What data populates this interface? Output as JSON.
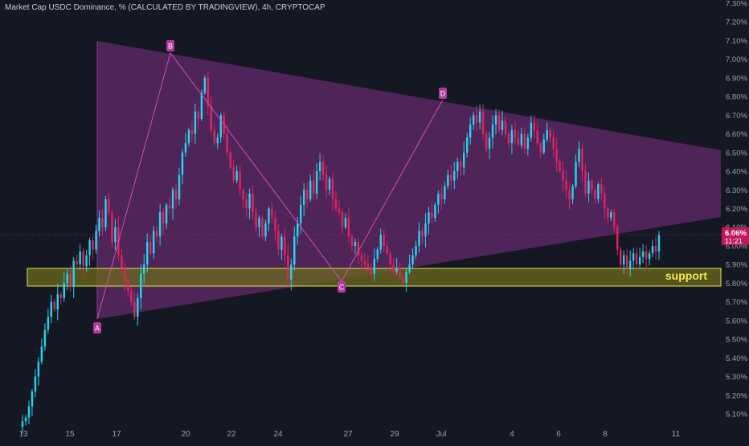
{
  "header": {
    "title": "Market Cap USDC Dominance, % (CALCULATED BY TRADINGVIEW), 4h, CRYPTOCAP"
  },
  "price_label": {
    "value": "6.06%",
    "countdown": "11:21"
  },
  "colors": {
    "background": "#141823",
    "bull": "#22d3ee",
    "bear": "#e0245e",
    "triangle_fill": "#7e2f86",
    "pattern_line": "#d44fb8",
    "point_label": "#b23aa0",
    "support_fill": "#6b6a1c",
    "support_border": "#e8e24a",
    "support_text": "#f1ea4a",
    "price_line": "#c2185b",
    "axis_text": "#9aa0ab",
    "price_tag": "#c2185b"
  },
  "chart_data": {
    "type": "candlestick",
    "title": "Market Cap USDC Dominance, % (CALCULATED BY TRADINGVIEW), 4h, CRYPTOCAP",
    "xlabel": "",
    "ylabel": "",
    "ylim": [
      5.05,
      7.31
    ],
    "grid": false,
    "y_ticks": [
      "5.10%",
      "5.20%",
      "5.30%",
      "5.40%",
      "5.50%",
      "5.60%",
      "5.70%",
      "5.80%",
      "5.90%",
      "6.00%",
      "6.10%",
      "6.20%",
      "6.30%",
      "6.40%",
      "6.50%",
      "6.60%",
      "6.70%",
      "6.80%",
      "6.90%",
      "7.00%",
      "7.10%",
      "7.20%",
      "7.30%"
    ],
    "x_ticks": [
      "13",
      "15",
      "17",
      "20",
      "22",
      "24",
      "27",
      "29",
      "Jul",
      "4",
      "6",
      "8",
      "11"
    ],
    "candles_close": [
      5.06,
      5.08,
      5.14,
      5.22,
      5.3,
      5.38,
      5.46,
      5.55,
      5.62,
      5.7,
      5.66,
      5.74,
      5.72,
      5.8,
      5.85,
      5.78,
      5.92,
      5.9,
      5.97,
      5.89,
      5.95,
      6.03,
      5.98,
      6.08,
      6.15,
      6.1,
      6.25,
      6.18,
      6.02,
      6.1,
      5.95,
      5.88,
      5.81,
      5.76,
      5.7,
      5.62,
      5.72,
      5.85,
      5.9,
      6.02,
      5.96,
      6.08,
      6.05,
      6.18,
      6.12,
      6.22,
      6.2,
      6.3,
      6.25,
      6.38,
      6.5,
      6.55,
      6.62,
      6.6,
      6.72,
      6.68,
      6.82,
      6.9,
      6.75,
      6.62,
      6.55,
      6.58,
      6.7,
      6.6,
      6.5,
      6.42,
      6.35,
      6.4,
      6.3,
      6.25,
      6.2,
      6.28,
      6.18,
      6.1,
      6.15,
      6.05,
      6.12,
      6.2,
      6.15,
      6.08,
      5.98,
      6.05,
      5.95,
      5.82,
      5.9,
      6.05,
      6.12,
      6.22,
      6.3,
      6.25,
      6.35,
      6.28,
      6.4,
      6.45,
      6.38,
      6.3,
      6.36,
      6.25,
      6.2,
      6.18,
      6.1,
      6.15,
      6.05,
      6.0,
      6.02,
      5.95,
      5.92,
      5.9,
      5.88,
      5.85,
      5.93,
      5.98,
      6.06,
      6.0,
      5.96,
      5.9,
      5.86,
      5.88,
      5.83,
      5.8,
      5.86,
      5.9,
      5.95,
      6.0,
      6.08,
      6.05,
      6.12,
      6.18,
      6.15,
      6.22,
      6.28,
      6.25,
      6.32,
      6.38,
      6.35,
      6.4,
      6.45,
      6.42,
      6.5,
      6.58,
      6.65,
      6.7,
      6.66,
      6.72,
      6.6,
      6.52,
      6.58,
      6.65,
      6.7,
      6.62,
      6.67,
      6.6,
      6.55,
      6.62,
      6.58,
      6.54,
      6.6,
      6.52,
      6.58,
      6.66,
      6.62,
      6.55,
      6.5,
      6.57,
      6.62,
      6.58,
      6.52,
      6.45,
      6.4,
      6.35,
      6.3,
      6.25,
      6.32,
      6.45,
      6.52,
      6.4,
      6.28,
      6.35,
      6.3,
      6.25,
      6.33,
      6.28,
      6.2,
      6.15,
      6.18,
      6.1,
      5.98,
      5.9,
      5.95,
      5.88,
      5.92,
      5.96,
      5.9,
      5.94,
      5.97,
      5.93,
      5.96,
      6.0,
      5.97,
      6.06
    ]
  },
  "points": {
    "A": "A",
    "B": "B",
    "C": "C",
    "D": "D"
  },
  "support_label": "support"
}
